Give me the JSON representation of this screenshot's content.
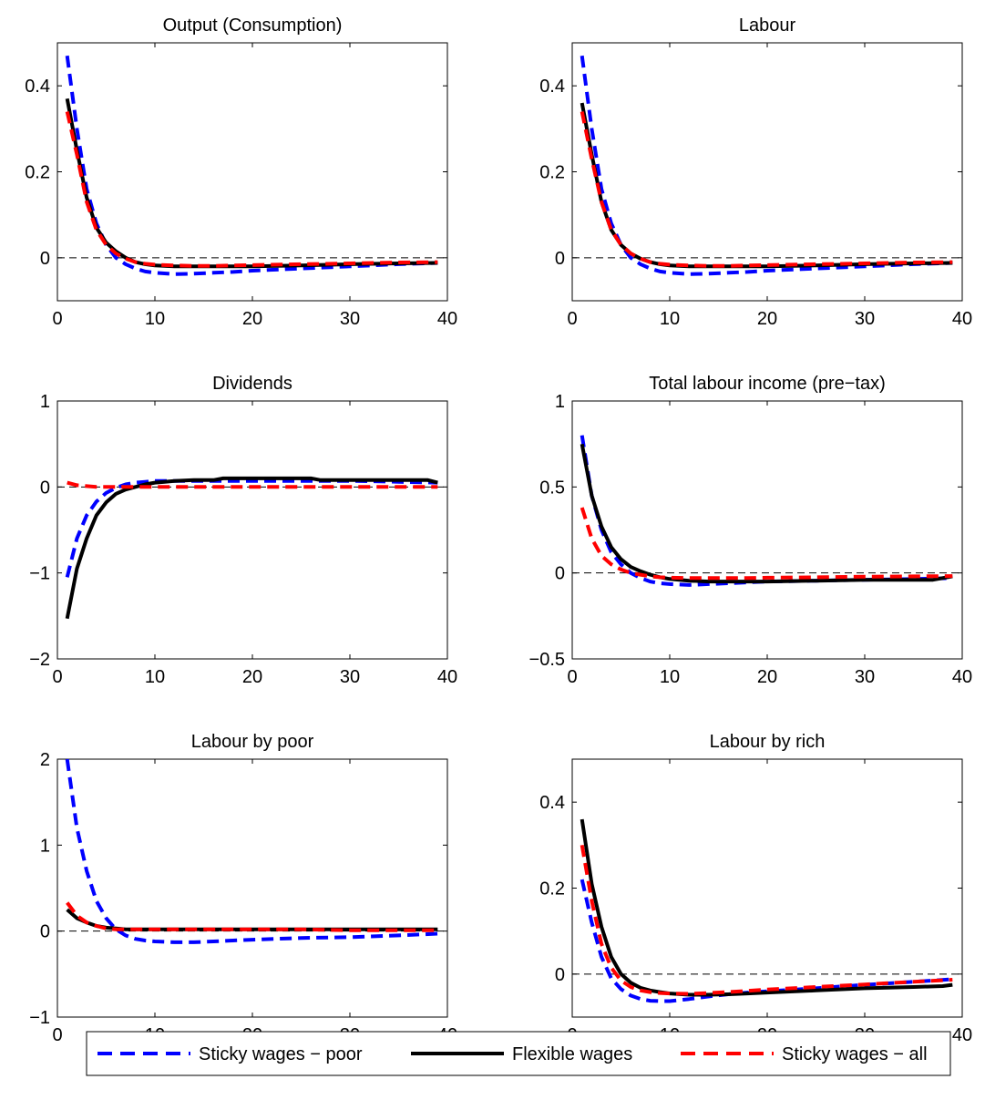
{
  "legend": {
    "placement": "bottom-center",
    "entries": [
      {
        "label": "Sticky wages − poor",
        "color": "#0000ff",
        "dash": "dashed"
      },
      {
        "label": "Flexible wages",
        "color": "#000000",
        "dash": "solid"
      },
      {
        "label": "Sticky wages − all",
        "color": "#ff0000",
        "dash": "dashed"
      }
    ]
  },
  "chart_data": [
    {
      "type": "line",
      "title": "Output (Consumption)",
      "xlim": [
        0,
        40
      ],
      "ylim": [
        -0.1,
        0.5
      ],
      "xticks": [
        0,
        10,
        20,
        30,
        40
      ],
      "xtick_labels": [
        "0",
        "10",
        "20",
        "30",
        "40"
      ],
      "yticks": [
        0,
        0.2,
        0.4
      ],
      "ytick_labels": [
        "0",
        "0.2",
        "0.4"
      ],
      "zero_line": true,
      "grid": false,
      "series": [
        {
          "name": "Sticky wages − poor",
          "color": "#0000ff",
          "dash": "dashed",
          "x": [
            1,
            2,
            3,
            4,
            5,
            6,
            7,
            8,
            9,
            10,
            12,
            14,
            16,
            18,
            20,
            25,
            30,
            35,
            39
          ],
          "y": [
            0.47,
            0.3,
            0.16,
            0.08,
            0.03,
            0.0,
            -0.015,
            -0.025,
            -0.032,
            -0.035,
            -0.038,
            -0.037,
            -0.035,
            -0.033,
            -0.03,
            -0.025,
            -0.02,
            -0.015,
            -0.012
          ]
        },
        {
          "name": "Flexible wages",
          "color": "#000000",
          "dash": "solid",
          "x": [
            1,
            2,
            3,
            4,
            5,
            6,
            7,
            8,
            9,
            10,
            12,
            14,
            16,
            18,
            20,
            25,
            30,
            35,
            39
          ],
          "y": [
            0.37,
            0.25,
            0.14,
            0.07,
            0.035,
            0.015,
            0.0,
            -0.01,
            -0.015,
            -0.018,
            -0.02,
            -0.02,
            -0.02,
            -0.02,
            -0.02,
            -0.018,
            -0.015,
            -0.013,
            -0.012
          ]
        },
        {
          "name": "Sticky wages − all",
          "color": "#ff0000",
          "dash": "dashed",
          "x": [
            1,
            2,
            3,
            4,
            5,
            6,
            7,
            8,
            9,
            10,
            12,
            14,
            16,
            18,
            20,
            25,
            30,
            35,
            39
          ],
          "y": [
            0.34,
            0.24,
            0.13,
            0.065,
            0.03,
            0.01,
            -0.002,
            -0.01,
            -0.014,
            -0.016,
            -0.018,
            -0.019,
            -0.019,
            -0.018,
            -0.017,
            -0.015,
            -0.013,
            -0.011,
            -0.01
          ]
        }
      ]
    },
    {
      "type": "line",
      "title": "Labour",
      "xlim": [
        0,
        40
      ],
      "ylim": [
        -0.1,
        0.5
      ],
      "xticks": [
        0,
        10,
        20,
        30,
        40
      ],
      "xtick_labels": [
        "0",
        "10",
        "20",
        "30",
        "40"
      ],
      "yticks": [
        0,
        0.2,
        0.4
      ],
      "ytick_labels": [
        "0",
        "0.2",
        "0.4"
      ],
      "zero_line": true,
      "grid": false,
      "series": [
        {
          "name": "Sticky wages − poor",
          "color": "#0000ff",
          "dash": "dashed",
          "x": [
            1,
            2,
            3,
            4,
            5,
            6,
            7,
            8,
            9,
            10,
            12,
            14,
            16,
            18,
            20,
            25,
            30,
            35,
            39
          ],
          "y": [
            0.47,
            0.3,
            0.16,
            0.08,
            0.03,
            0.0,
            -0.015,
            -0.025,
            -0.032,
            -0.035,
            -0.038,
            -0.037,
            -0.035,
            -0.033,
            -0.03,
            -0.025,
            -0.02,
            -0.015,
            -0.012
          ]
        },
        {
          "name": "Flexible wages",
          "color": "#000000",
          "dash": "solid",
          "x": [
            1,
            2,
            3,
            4,
            5,
            6,
            7,
            8,
            9,
            10,
            12,
            14,
            16,
            18,
            20,
            25,
            30,
            35,
            39
          ],
          "y": [
            0.36,
            0.24,
            0.13,
            0.065,
            0.03,
            0.01,
            -0.002,
            -0.01,
            -0.015,
            -0.018,
            -0.02,
            -0.02,
            -0.02,
            -0.02,
            -0.02,
            -0.018,
            -0.015,
            -0.013,
            -0.012
          ]
        },
        {
          "name": "Sticky wages − all",
          "color": "#ff0000",
          "dash": "dashed",
          "x": [
            1,
            2,
            3,
            4,
            5,
            6,
            7,
            8,
            9,
            10,
            12,
            14,
            16,
            18,
            20,
            25,
            30,
            35,
            39
          ],
          "y": [
            0.34,
            0.23,
            0.13,
            0.065,
            0.03,
            0.01,
            -0.002,
            -0.01,
            -0.014,
            -0.016,
            -0.018,
            -0.019,
            -0.019,
            -0.018,
            -0.017,
            -0.015,
            -0.013,
            -0.011,
            -0.01
          ]
        }
      ]
    },
    {
      "type": "line",
      "title": "Dividends",
      "xlim": [
        0,
        40
      ],
      "ylim": [
        -2,
        1
      ],
      "xticks": [
        0,
        10,
        20,
        30,
        40
      ],
      "xtick_labels": [
        "0",
        "10",
        "20",
        "30",
        "40"
      ],
      "yticks": [
        -2,
        -1,
        0,
        1
      ],
      "ytick_labels": [
        "−2",
        "−1",
        "0",
        "1"
      ],
      "zero_line": true,
      "grid": false,
      "series": [
        {
          "name": "Sticky wages − poor",
          "color": "#0000ff",
          "dash": "dashed",
          "x": [
            1,
            2,
            3,
            4,
            5,
            6,
            7,
            8,
            9,
            10,
            12,
            14,
            16,
            18,
            20,
            25,
            30,
            35,
            39
          ],
          "y": [
            -1.05,
            -0.6,
            -0.33,
            -0.17,
            -0.07,
            -0.01,
            0.03,
            0.05,
            0.06,
            0.07,
            0.07,
            0.07,
            0.07,
            0.07,
            0.07,
            0.07,
            0.07,
            0.06,
            0.05
          ]
        },
        {
          "name": "Flexible wages",
          "color": "#000000",
          "dash": "solid",
          "x": [
            1,
            2,
            3,
            4,
            5,
            6,
            7,
            8,
            9,
            10,
            11,
            12,
            14,
            16,
            17,
            20,
            24,
            26,
            27,
            30,
            35,
            38,
            39
          ],
          "y": [
            -1.53,
            -0.95,
            -0.6,
            -0.33,
            -0.18,
            -0.08,
            -0.03,
            0.0,
            0.03,
            0.05,
            0.06,
            0.07,
            0.08,
            0.08,
            0.1,
            0.1,
            0.1,
            0.1,
            0.08,
            0.08,
            0.08,
            0.08,
            0.05
          ]
        },
        {
          "name": "Sticky wages − all",
          "color": "#ff0000",
          "dash": "dashed",
          "x": [
            1,
            2,
            3,
            4,
            5,
            6,
            8,
            10,
            15,
            20,
            25,
            30,
            35,
            39
          ],
          "y": [
            0.05,
            0.02,
            0.01,
            0.0,
            0.0,
            0.0,
            0.0,
            0.0,
            0.0,
            0.0,
            0.0,
            0.0,
            0.0,
            0.0
          ]
        }
      ]
    },
    {
      "type": "line",
      "title": "Total labour income (pre−tax)",
      "xlim": [
        0,
        40
      ],
      "ylim": [
        -0.5,
        1
      ],
      "xticks": [
        0,
        10,
        20,
        30,
        40
      ],
      "xtick_labels": [
        "0",
        "10",
        "20",
        "30",
        "40"
      ],
      "yticks": [
        -0.5,
        0,
        0.5,
        1
      ],
      "ytick_labels": [
        "−0.5",
        "0",
        "0.5",
        "1"
      ],
      "zero_line": true,
      "grid": false,
      "series": [
        {
          "name": "Sticky wages − poor",
          "color": "#0000ff",
          "dash": "dashed",
          "x": [
            1,
            2,
            3,
            4,
            5,
            6,
            7,
            8,
            9,
            10,
            12,
            14,
            16,
            18,
            20,
            25,
            30,
            35,
            39
          ],
          "y": [
            0.8,
            0.45,
            0.25,
            0.12,
            0.05,
            0.0,
            -0.03,
            -0.05,
            -0.06,
            -0.065,
            -0.07,
            -0.065,
            -0.06,
            -0.055,
            -0.05,
            -0.045,
            -0.04,
            -0.035,
            -0.03
          ]
        },
        {
          "name": "Flexible wages",
          "color": "#000000",
          "dash": "solid",
          "x": [
            1,
            2,
            3,
            4,
            5,
            6,
            7,
            8,
            9,
            10,
            12,
            14,
            16,
            18,
            20,
            25,
            30,
            35,
            37,
            39
          ],
          "y": [
            0.75,
            0.45,
            0.27,
            0.15,
            0.08,
            0.035,
            0.01,
            -0.01,
            -0.025,
            -0.035,
            -0.045,
            -0.05,
            -0.05,
            -0.05,
            -0.05,
            -0.045,
            -0.04,
            -0.04,
            -0.04,
            -0.02
          ]
        },
        {
          "name": "Sticky wages − all",
          "color": "#ff0000",
          "dash": "dashed",
          "x": [
            1,
            2,
            3,
            4,
            5,
            6,
            7,
            8,
            9,
            10,
            12,
            14,
            16,
            18,
            20,
            25,
            30,
            35,
            39
          ],
          "y": [
            0.38,
            0.2,
            0.1,
            0.05,
            0.02,
            0.0,
            -0.01,
            -0.02,
            -0.025,
            -0.028,
            -0.03,
            -0.03,
            -0.03,
            -0.03,
            -0.028,
            -0.025,
            -0.022,
            -0.02,
            -0.018
          ]
        }
      ]
    },
    {
      "type": "line",
      "title": "Labour by poor",
      "xlim": [
        0,
        40
      ],
      "ylim": [
        -1,
        2
      ],
      "xticks": [
        0,
        10,
        20,
        30,
        40
      ],
      "xtick_labels": [
        "0",
        "10",
        "20",
        "30",
        "40"
      ],
      "yticks": [
        -1,
        0,
        1,
        2
      ],
      "ytick_labels": [
        "−1",
        "0",
        "1",
        "2"
      ],
      "zero_line": true,
      "grid": false,
      "series": [
        {
          "name": "Sticky wages − poor",
          "color": "#0000ff",
          "dash": "dashed",
          "x": [
            1,
            2,
            3,
            4,
            5,
            6,
            7,
            8,
            9,
            10,
            12,
            14,
            16,
            18,
            20,
            25,
            30,
            35,
            39
          ],
          "y": [
            2.0,
            1.2,
            0.7,
            0.35,
            0.15,
            0.02,
            -0.05,
            -0.09,
            -0.11,
            -0.12,
            -0.13,
            -0.13,
            -0.12,
            -0.11,
            -0.1,
            -0.08,
            -0.07,
            -0.05,
            -0.03
          ]
        },
        {
          "name": "Flexible wages",
          "color": "#000000",
          "dash": "solid",
          "x": [
            1,
            2,
            3,
            4,
            5,
            6,
            7,
            8,
            10,
            15,
            20,
            25,
            30,
            35,
            39
          ],
          "y": [
            0.25,
            0.15,
            0.1,
            0.06,
            0.04,
            0.03,
            0.02,
            0.02,
            0.02,
            0.02,
            0.02,
            0.02,
            0.02,
            0.02,
            0.02
          ]
        },
        {
          "name": "Sticky wages − all",
          "color": "#ff0000",
          "dash": "dashed",
          "x": [
            1,
            2,
            3,
            4,
            5,
            6,
            7,
            8,
            10,
            15,
            20,
            25,
            30,
            35,
            39
          ],
          "y": [
            0.33,
            0.18,
            0.1,
            0.06,
            0.03,
            0.02,
            0.02,
            0.02,
            0.02,
            0.02,
            0.02,
            0.02,
            0.01,
            0.01,
            0.01
          ]
        }
      ]
    },
    {
      "type": "line",
      "title": "Labour by rich",
      "xlim": [
        0,
        40
      ],
      "ylim": [
        -0.1,
        0.5
      ],
      "xticks": [
        0,
        10,
        20,
        30,
        40
      ],
      "xtick_labels": [
        "0",
        "10",
        "20",
        "30",
        "40"
      ],
      "yticks": [
        0,
        0.2,
        0.4
      ],
      "ytick_labels": [
        "0",
        "0.2",
        "0.4"
      ],
      "zero_line": true,
      "grid": false,
      "series": [
        {
          "name": "Sticky wages − poor",
          "color": "#0000ff",
          "dash": "dashed",
          "x": [
            1,
            2,
            3,
            4,
            5,
            6,
            7,
            8,
            9,
            10,
            12,
            14,
            16,
            18,
            20,
            25,
            30,
            35,
            39
          ],
          "y": [
            0.22,
            0.12,
            0.04,
            -0.01,
            -0.035,
            -0.05,
            -0.058,
            -0.062,
            -0.063,
            -0.063,
            -0.058,
            -0.052,
            -0.047,
            -0.043,
            -0.04,
            -0.033,
            -0.025,
            -0.018,
            -0.012
          ]
        },
        {
          "name": "Flexible wages",
          "color": "#000000",
          "dash": "solid",
          "x": [
            1,
            2,
            3,
            4,
            5,
            6,
            7,
            8,
            9,
            10,
            12,
            14,
            16,
            18,
            20,
            25,
            30,
            35,
            38,
            39
          ],
          "y": [
            0.36,
            0.21,
            0.11,
            0.04,
            0.0,
            -0.02,
            -0.032,
            -0.038,
            -0.042,
            -0.045,
            -0.048,
            -0.048,
            -0.047,
            -0.045,
            -0.043,
            -0.038,
            -0.033,
            -0.03,
            -0.028,
            -0.025
          ]
        },
        {
          "name": "Sticky wages − all",
          "color": "#ff0000",
          "dash": "dashed",
          "x": [
            1,
            2,
            3,
            4,
            5,
            6,
            7,
            8,
            9,
            10,
            12,
            14,
            16,
            18,
            20,
            25,
            30,
            35,
            39
          ],
          "y": [
            0.3,
            0.17,
            0.07,
            0.015,
            -0.015,
            -0.03,
            -0.038,
            -0.042,
            -0.044,
            -0.045,
            -0.046,
            -0.044,
            -0.042,
            -0.039,
            -0.036,
            -0.03,
            -0.024,
            -0.018,
            -0.013
          ]
        }
      ]
    }
  ]
}
